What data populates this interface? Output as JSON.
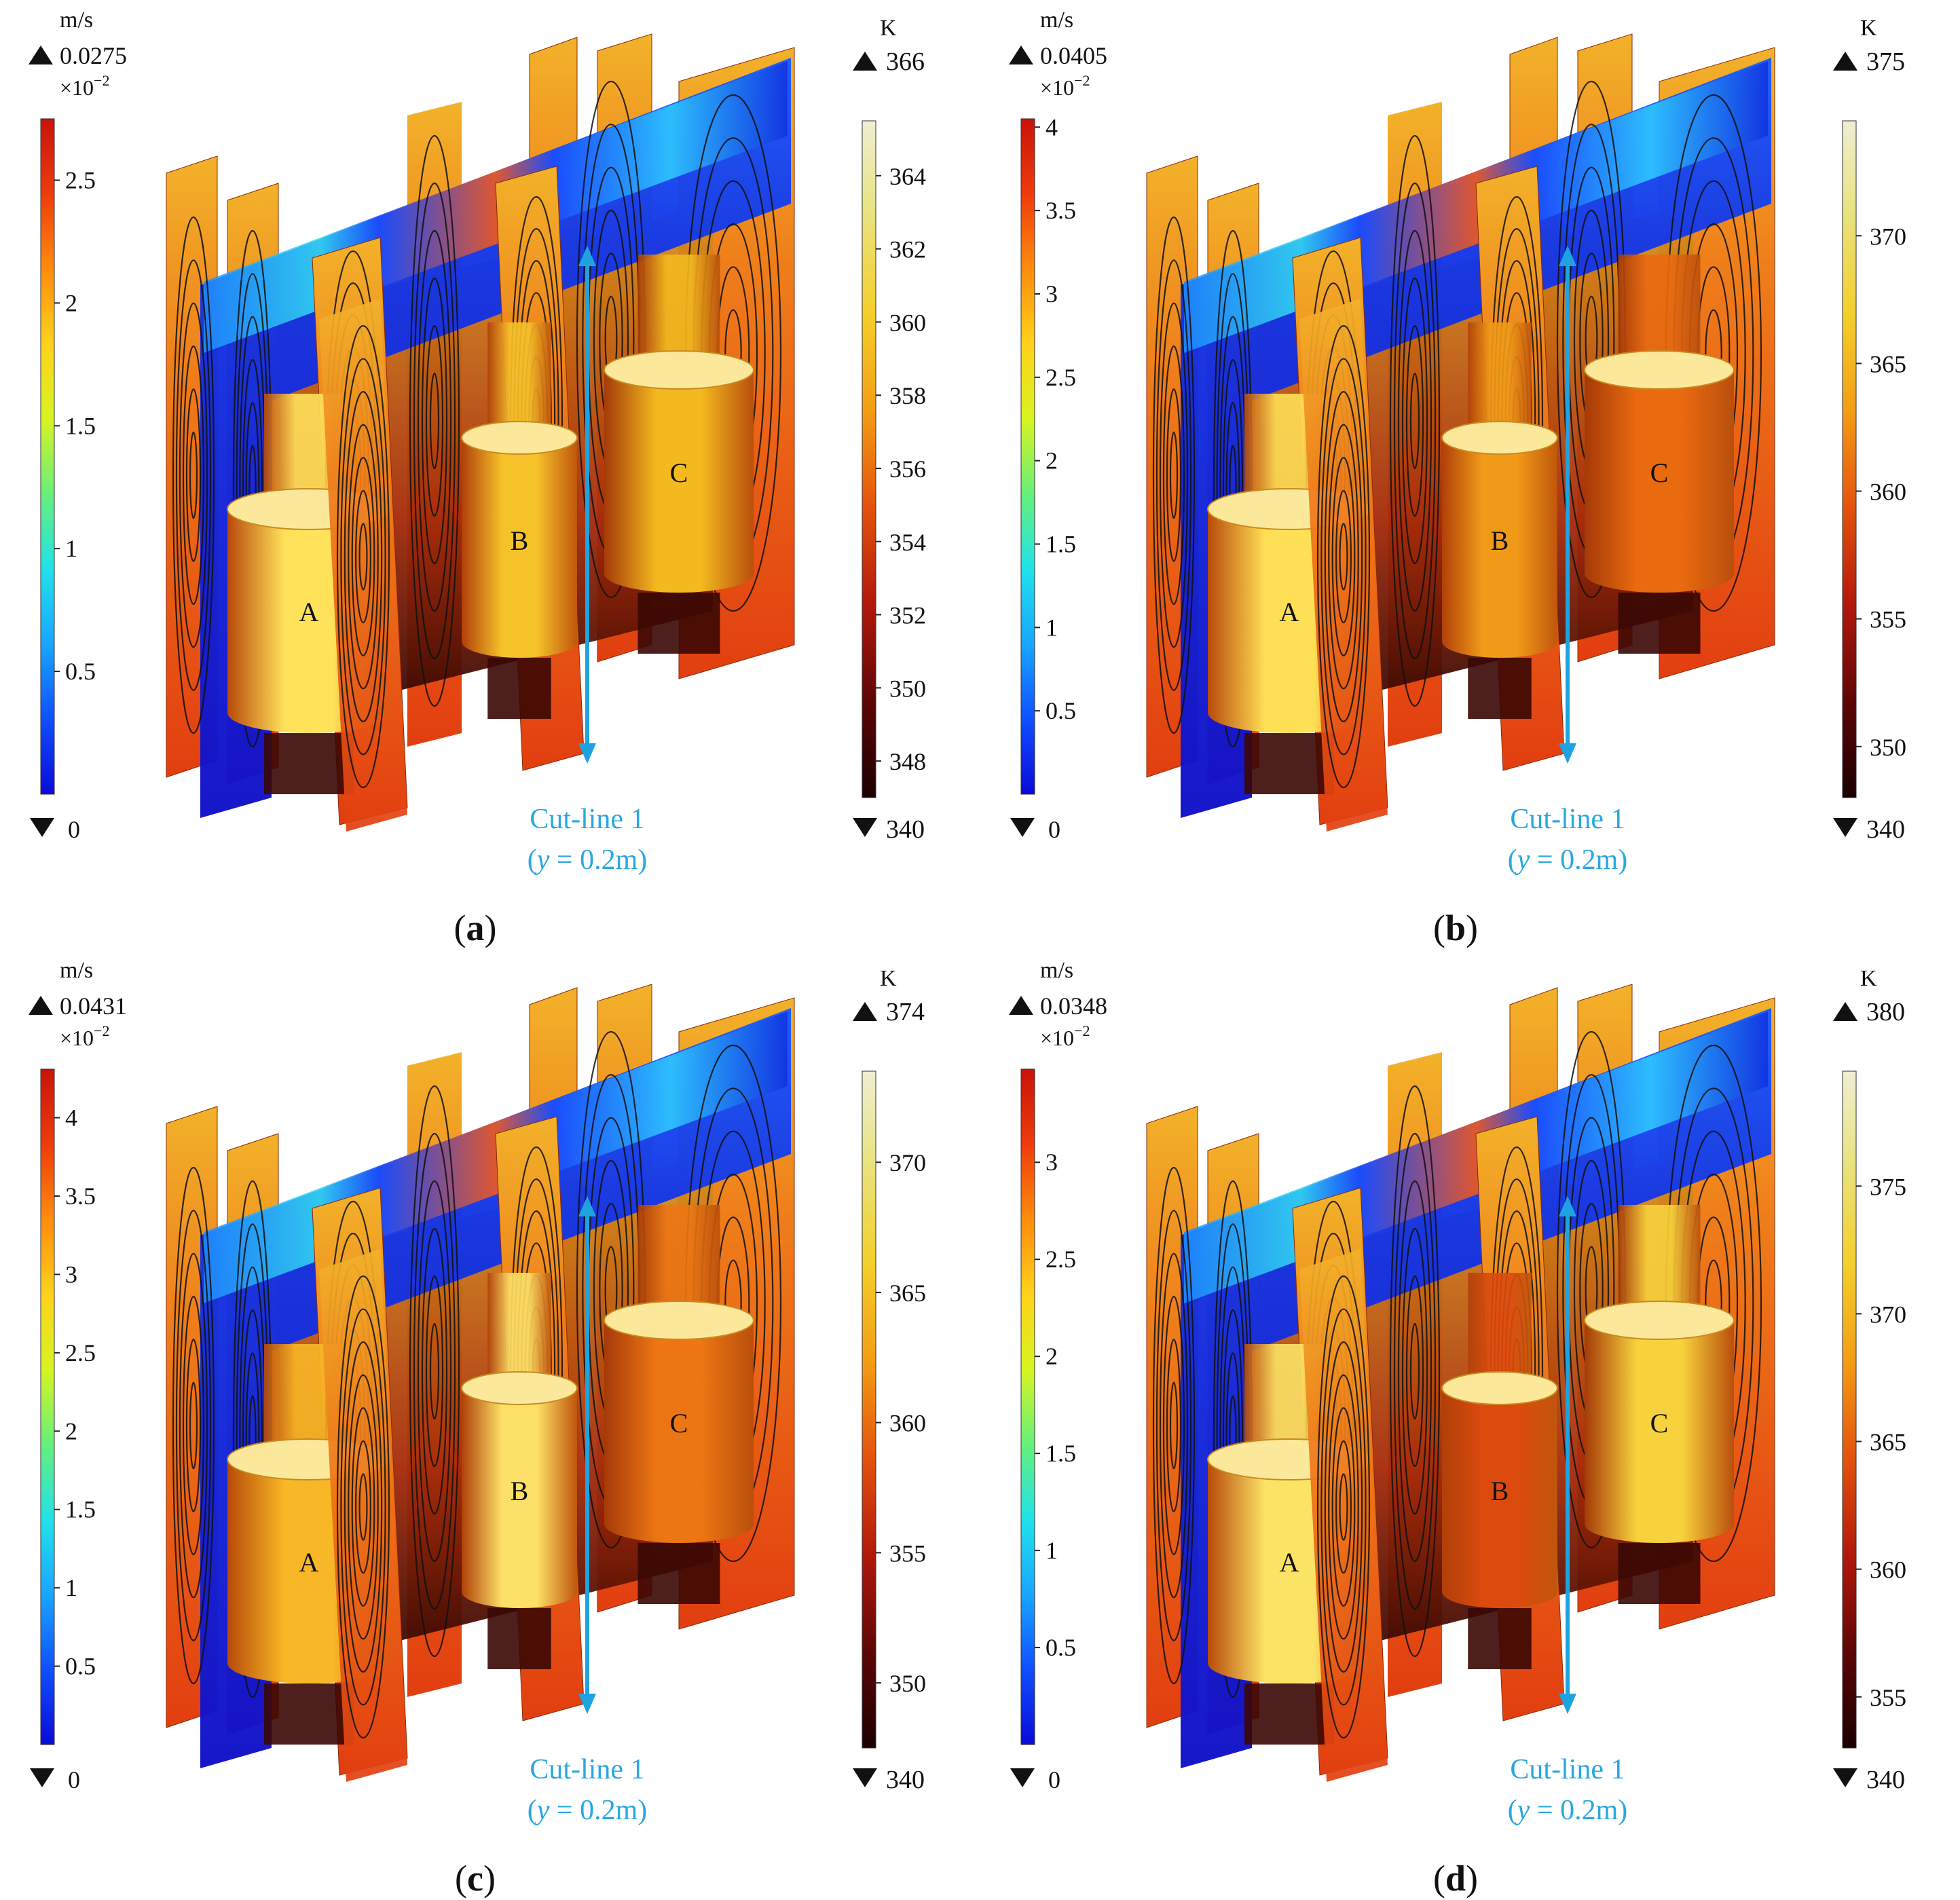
{
  "colors": {
    "cut_line": "#1fa3e0",
    "jet": [
      "#0a0ad8",
      "#0f4fff",
      "#18a6ff",
      "#20e2ea",
      "#66f07a",
      "#d7f420",
      "#ffd21a",
      "#ff8c0c",
      "#ef3b0b",
      "#c9130a"
    ],
    "heat": [
      "#1b0000",
      "#5e0606",
      "#b3180c",
      "#e4520c",
      "#f39d14",
      "#f4cf2a",
      "#e9e27a",
      "#efeed3"
    ]
  },
  "panels": [
    {
      "id": "a",
      "caption_open": "(",
      "caption_letter": "a",
      "caption_close": ")",
      "velocity_legend": {
        "unit": "m/s",
        "max_label": "0.0275",
        "multiplier": "×10",
        "exponent": "−2",
        "min_label": "0",
        "ticks": [
          "2.5",
          "2",
          "1.5",
          "1",
          "0.5"
        ],
        "tick_values": [
          2.5,
          2.0,
          1.5,
          1.0,
          0.5
        ],
        "range": [
          0,
          2.75
        ]
      },
      "temperature_legend": {
        "unit": "K",
        "max_label": "366",
        "min_label": "340",
        "ticks": [
          "364",
          "362",
          "360",
          "358",
          "356",
          "354",
          "352",
          "350",
          "348"
        ],
        "tick_values": [
          364,
          362,
          360,
          358,
          356,
          354,
          352,
          350,
          348
        ],
        "range": [
          347,
          365.5
        ]
      },
      "phases": [
        {
          "name": "A",
          "color": "#ffe15a"
        },
        {
          "name": "B",
          "color": "#f6c22a"
        },
        {
          "name": "C",
          "color": "#f3b91f"
        }
      ],
      "cut_line": {
        "line1": "Cut-line 1",
        "prefix": "(",
        "var": "y",
        "suffix": " = 0.2m)"
      }
    },
    {
      "id": "b",
      "caption_open": "(",
      "caption_letter": "b",
      "caption_close": ")",
      "velocity_legend": {
        "unit": "m/s",
        "max_label": "0.0405",
        "multiplier": "×10",
        "exponent": "−2",
        "min_label": "0",
        "ticks": [
          "4",
          "3.5",
          "3",
          "2.5",
          "2",
          "1.5",
          "1",
          "0.5"
        ],
        "tick_values": [
          4,
          3.5,
          3,
          2.5,
          2,
          1.5,
          1,
          0.5
        ],
        "range": [
          0,
          4.05
        ]
      },
      "temperature_legend": {
        "unit": "K",
        "max_label": "375",
        "min_label": "340",
        "ticks": [
          "370",
          "365",
          "360",
          "355",
          "350"
        ],
        "tick_values": [
          370,
          365,
          360,
          355,
          350
        ],
        "range": [
          348,
          374.5
        ]
      },
      "phases": [
        {
          "name": "A",
          "color": "#ffdf55"
        },
        {
          "name": "B",
          "color": "#f19a18"
        },
        {
          "name": "C",
          "color": "#ea6a10"
        }
      ],
      "cut_line": {
        "line1": "Cut-line 1",
        "prefix": "(",
        "var": "y",
        "suffix": " = 0.2m)"
      }
    },
    {
      "id": "c",
      "caption_open": "(",
      "caption_letter": "c",
      "caption_close": ")",
      "velocity_legend": {
        "unit": "m/s",
        "max_label": "0.0431",
        "multiplier": "×10",
        "exponent": "−2",
        "min_label": "0",
        "ticks": [
          "4",
          "3.5",
          "3",
          "2.5",
          "2",
          "1.5",
          "1",
          "0.5"
        ],
        "tick_values": [
          4,
          3.5,
          3,
          2.5,
          2,
          1.5,
          1,
          0.5
        ],
        "range": [
          0,
          4.31
        ]
      },
      "temperature_legend": {
        "unit": "K",
        "max_label": "374",
        "min_label": "340",
        "ticks": [
          "370",
          "365",
          "360",
          "355",
          "350"
        ],
        "tick_values": [
          370,
          365,
          360,
          355,
          350
        ],
        "range": [
          347.5,
          373.5
        ]
      },
      "phases": [
        {
          "name": "A",
          "color": "#f8b726"
        },
        {
          "name": "B",
          "color": "#fde067"
        },
        {
          "name": "C",
          "color": "#ec7614"
        }
      ],
      "cut_line": {
        "line1": "Cut-line 1",
        "prefix": "(",
        "var": "y",
        "suffix": " = 0.2m)"
      }
    },
    {
      "id": "d",
      "caption_open": "(",
      "caption_letter": "d",
      "caption_close": ")",
      "velocity_legend": {
        "unit": "m/s",
        "max_label": "0.0348",
        "multiplier": "×10",
        "exponent": "−2",
        "min_label": "0",
        "ticks": [
          "3",
          "2.5",
          "2",
          "1.5",
          "1",
          "0.5"
        ],
        "tick_values": [
          3,
          2.5,
          2,
          1.5,
          1,
          0.5
        ],
        "range": [
          0,
          3.48
        ]
      },
      "temperature_legend": {
        "unit": "K",
        "max_label": "380",
        "min_label": "340",
        "ticks": [
          "375",
          "370",
          "365",
          "360",
          "355"
        ],
        "tick_values": [
          375,
          370,
          365,
          360,
          355
        ],
        "range": [
          353,
          379.5
        ]
      },
      "phases": [
        {
          "name": "A",
          "color": "#fbe365"
        },
        {
          "name": "B",
          "color": "#dc4a0e"
        },
        {
          "name": "C",
          "color": "#f8d23c"
        }
      ],
      "cut_line": {
        "line1": "Cut-line 1",
        "prefix": "(",
        "var": "y",
        "suffix": " = 0.2m)"
      }
    }
  ]
}
